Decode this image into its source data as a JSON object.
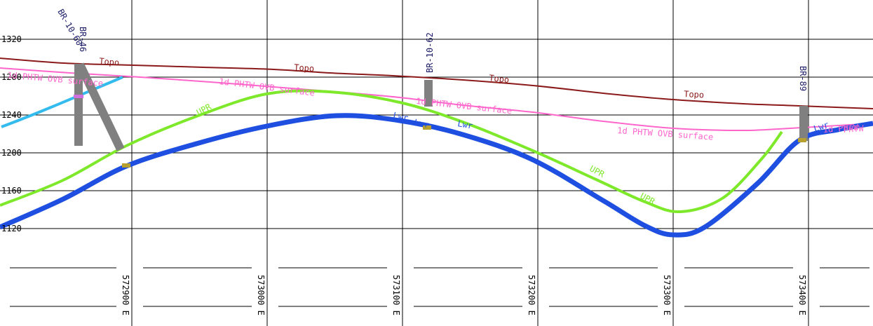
{
  "y_axis": {
    "labels": [
      {
        "value": 1320,
        "text": "1320"
      },
      {
        "value": 1280,
        "text": "1280"
      },
      {
        "value": 1240,
        "text": "1240"
      },
      {
        "value": 1200,
        "text": "1200"
      },
      {
        "value": 1160,
        "text": "1160"
      },
      {
        "value": 1120,
        "text": "1120"
      }
    ]
  },
  "x_axis": {
    "labels": [
      {
        "easting": 572900,
        "text": "572900 E"
      },
      {
        "easting": 573000,
        "text": "573000 E"
      },
      {
        "easting": 573100,
        "text": "573100 E"
      },
      {
        "easting": 573200,
        "text": "573200 E"
      },
      {
        "easting": 573300,
        "text": "573300 E"
      },
      {
        "easting": 573400,
        "text": "573400 E"
      }
    ]
  },
  "boreholes": [
    {
      "name": "BR-10-60",
      "label": "BR-10-60"
    },
    {
      "name": "BR-46",
      "label": "BR-46"
    },
    {
      "name": "BR-10-62",
      "label": "BR-10-62"
    },
    {
      "name": "BR-89",
      "label": "BR-89"
    }
  ],
  "surfaces": {
    "topo": {
      "color": "#8b1a1a",
      "labels": [
        "Topo",
        "Topo",
        "Topo",
        "Topo"
      ]
    },
    "pht": {
      "color": "#ff66cc",
      "labels": [
        "1d PHTW OVB surface",
        "1d PHTW OVB surface",
        "1d PHTW OVB surface",
        "1d PHTW OVB surface",
        "1d PHTW"
      ],
      "partial_label": "PHTW"
    },
    "upr": {
      "color": "#7ee82a",
      "labels": [
        "UPR",
        "UPR",
        "UPR"
      ]
    },
    "lwr": {
      "color": "#1e4fe0",
      "labels": [
        "Lwr",
        "Lwr",
        "Lwr",
        "Lwr"
      ]
    }
  },
  "colors": {
    "grid": "#000000",
    "borehole": "#808080",
    "light_blue": "#33bbee",
    "contact_marker": "#b8a030"
  }
}
